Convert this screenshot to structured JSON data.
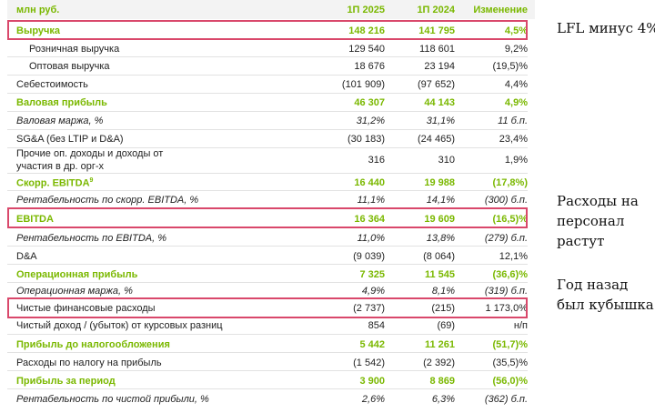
{
  "header": {
    "label": "млн руб.",
    "col1": "1П 2025",
    "col2": "1П 2024",
    "col3": "Изменение"
  },
  "rows": [
    {
      "label": "Выручка",
      "v1": "148 216",
      "v2": "141 795",
      "v3": "4,5%"
    },
    {
      "label": "Розничная выручка",
      "v1": "129 540",
      "v2": "118 601",
      "v3": "9,2%"
    },
    {
      "label": "Оптовая выручка",
      "v1": "18 676",
      "v2": "23 194",
      "v3": "(19,5)%"
    },
    {
      "label": "Себестоимость",
      "v1": "(101 909)",
      "v2": "(97 652)",
      "v3": "4,4%"
    },
    {
      "label": "Валовая прибыль",
      "v1": "46 307",
      "v2": "44 143",
      "v3": "4,9%"
    },
    {
      "label": "Валовая маржа, %",
      "v1": "31,2%",
      "v2": "31,1%",
      "v3": "11 б.п."
    },
    {
      "label": "SG&A (без LTIP и D&A)",
      "v1": "(30 183)",
      "v2": "(24 465)",
      "v3": "23,4%"
    },
    {
      "label": "Прочие оп. доходы и доходы от",
      "label2": "участия в др. орг-х",
      "v1": "316",
      "v2": "310",
      "v3": "1,9%"
    },
    {
      "label": "Скорр. EBITDA",
      "sup": "9",
      "v1": "16 440",
      "v2": "19 988",
      "v3": "(17,8%)"
    },
    {
      "label": "Рентабельность по скорр. EBITDA, %",
      "v1": "11,1%",
      "v2": "14,1%",
      "v3": "(300) б.п."
    },
    {
      "label": "EBITDA",
      "v1": "16 364",
      "v2": "19 609",
      "v3": "(16,5)%"
    },
    {
      "label": "Рентабельность по EBITDA, %",
      "v1": "11,0%",
      "v2": "13,8%",
      "v3": "(279) б.п."
    },
    {
      "label": "D&A",
      "v1": "(9 039)",
      "v2": "(8 064)",
      "v3": "12,1%"
    },
    {
      "label": "Операционная прибыль",
      "v1": "7 325",
      "v2": "11 545",
      "v3": "(36,6)%"
    },
    {
      "label": "Операционная маржа, %",
      "v1": "4,9%",
      "v2": "8,1%",
      "v3": "(319) б.п."
    },
    {
      "label": "Чистые финансовые расходы",
      "v1": "(2 737)",
      "v2": "(215)",
      "v3": "1 173,0%"
    },
    {
      "label": "Чистый доход / (убыток) от курсовых разниц",
      "v1": "854",
      "v2": "(69)",
      "v3": "н/п"
    },
    {
      "label": "Прибыль до налогообложения",
      "v1": "5 442",
      "v2": "11 261",
      "v3": "(51,7)%"
    },
    {
      "label": "Расходы по налогу на прибыль",
      "v1": "(1 542)",
      "v2": "(2 392)",
      "v3": "(35,5)%"
    },
    {
      "label": "Прибыль за период",
      "v1": "3 900",
      "v2": "8 869",
      "v3": "(56,0)%"
    },
    {
      "label": "Рентабельность по чистой прибыли, %",
      "v1": "2,6%",
      "v2": "6,3%",
      "v3": "(362) б.п."
    }
  ],
  "notes": {
    "n1": "LFL минус 4%",
    "n2a": "Расходы на",
    "n2b": "персонал",
    "n2c": "растут",
    "n3a": "Год назад",
    "n3b": "был кубышка"
  }
}
